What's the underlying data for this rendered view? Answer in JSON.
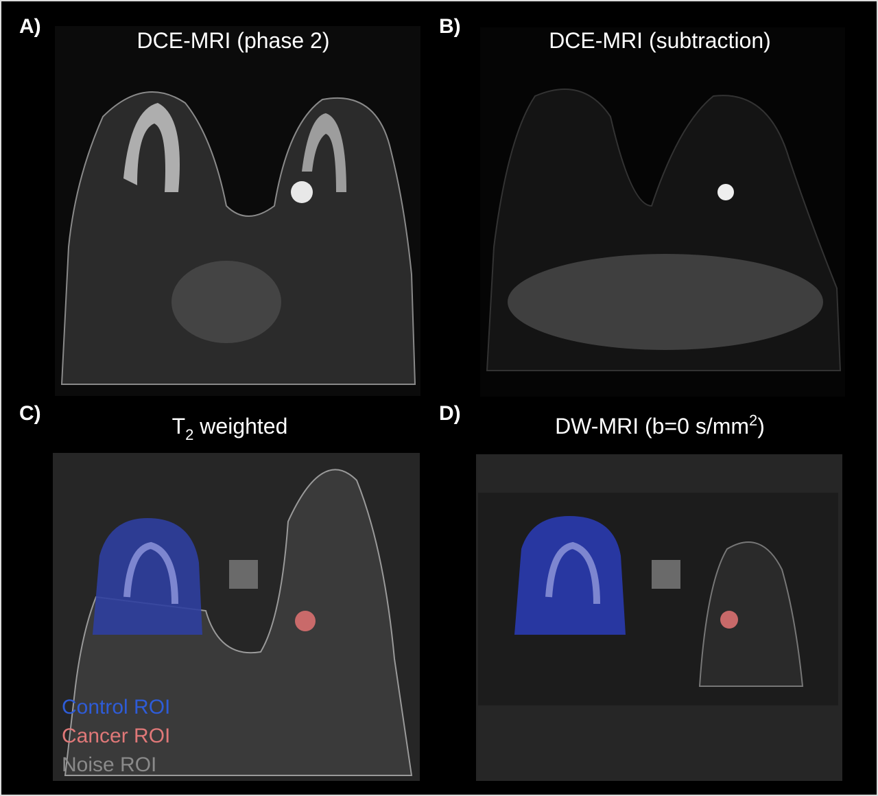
{
  "panels": [
    {
      "label": "A)",
      "title": [
        "DCE-MRI (phase 2)"
      ]
    },
    {
      "label": "B)",
      "title": [
        "DCE-MRI (subtraction)"
      ]
    },
    {
      "label": "C)",
      "title": [
        "T",
        "2",
        " weighted"
      ]
    },
    {
      "label": "D)",
      "title": [
        "DW-MRI (b=0 s/mm",
        "2",
        ")"
      ]
    }
  ],
  "legend": [
    "Control ROI",
    "Cancer ROI",
    "Noise ROI"
  ]
}
